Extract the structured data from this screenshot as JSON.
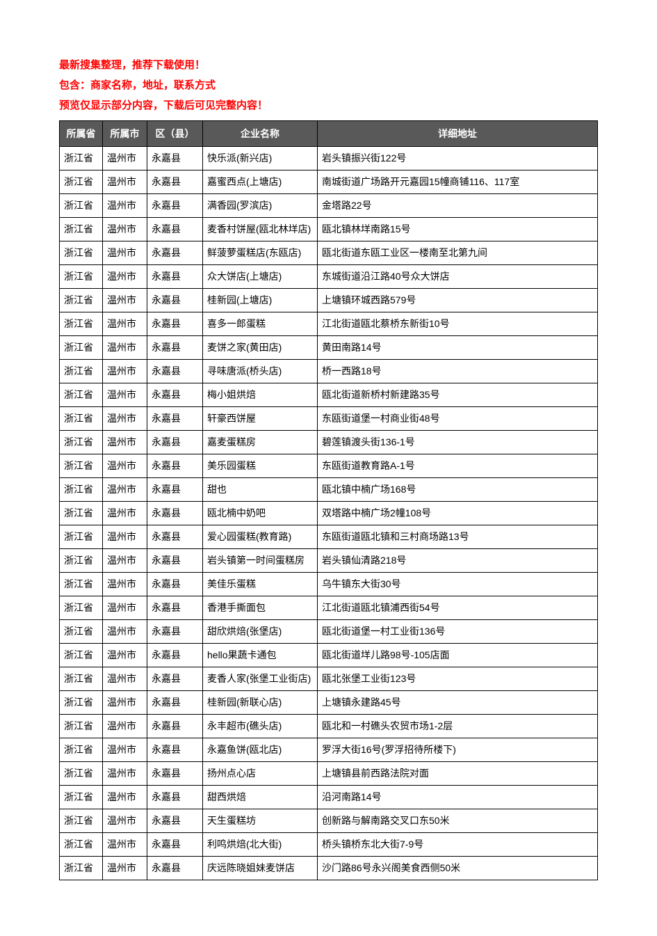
{
  "notices": [
    "最新搜集整理，推荐下载使用！",
    "包含：商家名称，地址，联系方式",
    "预览仅显示部分内容，下载后可见完整内容！"
  ],
  "table": {
    "headers": {
      "province": "所属省",
      "city": "所属市",
      "county": "区（县）",
      "company": "企业名称",
      "address": "详细地址"
    },
    "rows": [
      {
        "province": "浙江省",
        "city": "温州市",
        "county": "永嘉县",
        "company": "快乐派(新兴店)",
        "address": "岩头镇振兴街122号"
      },
      {
        "province": "浙江省",
        "city": "温州市",
        "county": "永嘉县",
        "company": "嘉蜜西点(上塘店)",
        "address": "南城街道广场路开元嘉园15幢商铺116、117室"
      },
      {
        "province": "浙江省",
        "city": "温州市",
        "county": "永嘉县",
        "company": "满香园(罗滨店)",
        "address": "金塔路22号"
      },
      {
        "province": "浙江省",
        "city": "温州市",
        "county": "永嘉县",
        "company": "麦香村饼屋(瓯北林垟店)",
        "address": "瓯北镇林垟南路15号"
      },
      {
        "province": "浙江省",
        "city": "温州市",
        "county": "永嘉县",
        "company": "鲜菠萝蛋糕店(东瓯店)",
        "address": "瓯北街道东瓯工业区一楼南至北第九间"
      },
      {
        "province": "浙江省",
        "city": "温州市",
        "county": "永嘉县",
        "company": "众大饼店(上塘店)",
        "address": "东城街道沿江路40号众大饼店"
      },
      {
        "province": "浙江省",
        "city": "温州市",
        "county": "永嘉县",
        "company": "桂新园(上塘店)",
        "address": "上塘镇环城西路579号"
      },
      {
        "province": "浙江省",
        "city": "温州市",
        "county": "永嘉县",
        "company": "喜多一郎蛋糕",
        "address": "江北街道瓯北蔡桥东新街10号"
      },
      {
        "province": "浙江省",
        "city": "温州市",
        "county": "永嘉县",
        "company": "麦饼之家(黄田店)",
        "address": "黄田南路14号"
      },
      {
        "province": "浙江省",
        "city": "温州市",
        "county": "永嘉县",
        "company": "寻味唐派(桥头店)",
        "address": "桥一西路18号"
      },
      {
        "province": "浙江省",
        "city": "温州市",
        "county": "永嘉县",
        "company": "梅小姐烘焙",
        "address": "瓯北街道新桥村新建路35号"
      },
      {
        "province": "浙江省",
        "city": "温州市",
        "county": "永嘉县",
        "company": "轩豪西饼屋",
        "address": "东瓯街道堡一村商业街48号"
      },
      {
        "province": "浙江省",
        "city": "温州市",
        "county": "永嘉县",
        "company": "嘉麦蛋糕房",
        "address": "碧莲镇渡头街136-1号"
      },
      {
        "province": "浙江省",
        "city": "温州市",
        "county": "永嘉县",
        "company": "美乐园蛋糕",
        "address": "东瓯街道教育路A-1号"
      },
      {
        "province": "浙江省",
        "city": "温州市",
        "county": "永嘉县",
        "company": "甜也",
        "address": "瓯北镇中楠广场168号"
      },
      {
        "province": "浙江省",
        "city": "温州市",
        "county": "永嘉县",
        "company": "瓯北楠中奶吧",
        "address": "双塔路中楠广场2幢108号"
      },
      {
        "province": "浙江省",
        "city": "温州市",
        "county": "永嘉县",
        "company": "爱心园蛋糕(教育路)",
        "address": "东瓯街道瓯北镇和三村商场路13号"
      },
      {
        "province": "浙江省",
        "city": "温州市",
        "county": "永嘉县",
        "company": "岩头镇第一时间蛋糕房",
        "address": "岩头镇仙清路218号"
      },
      {
        "province": "浙江省",
        "city": "温州市",
        "county": "永嘉县",
        "company": "美佳乐蛋糕",
        "address": "乌牛镇东大街30号"
      },
      {
        "province": "浙江省",
        "city": "温州市",
        "county": "永嘉县",
        "company": "香港手撕面包",
        "address": "江北街道瓯北镇浦西街54号"
      },
      {
        "province": "浙江省",
        "city": "温州市",
        "county": "永嘉县",
        "company": "甜欣烘焙(张堡店)",
        "address": "瓯北街道堡一村工业街136号"
      },
      {
        "province": "浙江省",
        "city": "温州市",
        "county": "永嘉县",
        "company": "hello果蔬卡通包",
        "address": "瓯北街道垟儿路98号-105店面"
      },
      {
        "province": "浙江省",
        "city": "温州市",
        "county": "永嘉县",
        "company": "麦香人家(张堡工业街店)",
        "address": "瓯北张堡工业街123号"
      },
      {
        "province": "浙江省",
        "city": "温州市",
        "county": "永嘉县",
        "company": "桂新园(新联心店)",
        "address": "上塘镇永建路45号"
      },
      {
        "province": "浙江省",
        "city": "温州市",
        "county": "永嘉县",
        "company": "永丰超市(礁头店)",
        "address": "瓯北和一村礁头农贸市场1-2层"
      },
      {
        "province": "浙江省",
        "city": "温州市",
        "county": "永嘉县",
        "company": "永嘉鱼饼(瓯北店)",
        "address": "罗浮大街16号(罗浮招待所楼下)"
      },
      {
        "province": "浙江省",
        "city": "温州市",
        "county": "永嘉县",
        "company": "扬州点心店",
        "address": "上塘镇县前西路法院对面"
      },
      {
        "province": "浙江省",
        "city": "温州市",
        "county": "永嘉县",
        "company": "甜西烘焙",
        "address": "沿河南路14号"
      },
      {
        "province": "浙江省",
        "city": "温州市",
        "county": "永嘉县",
        "company": "天生蛋糕坊",
        "address": "创新路与解南路交叉口东50米"
      },
      {
        "province": "浙江省",
        "city": "温州市",
        "county": "永嘉县",
        "company": "利鸣烘焙(北大街)",
        "address": "桥头镇桥东北大街7-9号"
      },
      {
        "province": "浙江省",
        "city": "温州市",
        "county": "永嘉县",
        "company": "庆远陈晓姐妹麦饼店",
        "address": "沙门路86号永兴阁美食西侧50米"
      }
    ]
  },
  "style": {
    "notice_color": "#ff0000",
    "header_bg": "#595959",
    "header_fg": "#ffffff",
    "border_color": "#000000",
    "text_color": "#000000",
    "background": "#ffffff"
  }
}
